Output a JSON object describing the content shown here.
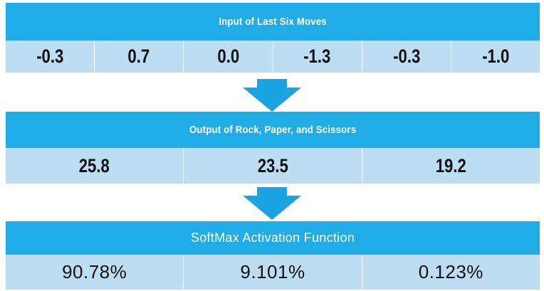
{
  "colors": {
    "header_bg": "#20ADE7",
    "row_bg": "#BDDDF3",
    "arrow": "#1AA4E4"
  },
  "panels": [
    {
      "title": "Input of Last Six Moves",
      "values": [
        "-0.3",
        "0.7",
        "0.0",
        "-1.3",
        "-0.3",
        "-1.0"
      ]
    },
    {
      "title": "Output of Rock, Paper, and Scissors",
      "values": [
        "25.8",
        "23.5",
        "19.2"
      ]
    },
    {
      "title": "SoftMax Activation Function",
      "values": [
        "90.78%",
        "9.101%",
        "0.123%"
      ]
    }
  ],
  "icons": {
    "arrow": "down-arrow-icon"
  }
}
